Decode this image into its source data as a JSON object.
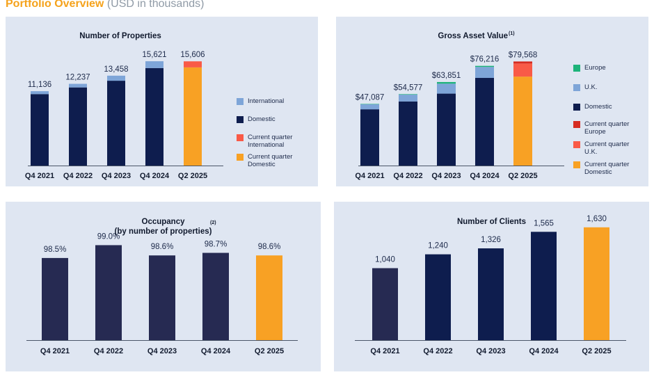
{
  "page": {
    "title_main": "Portfolio Overview",
    "title_sub": "(USD in thousands)"
  },
  "colors": {
    "panel_bg": "#dfe6f2",
    "domestic": "#0e1d4e",
    "occupancy_bar": "#262a52",
    "international": "#7ea5d8",
    "europe": "#1db37a",
    "current_domestic": "#f8a124",
    "current_international": "#f95a47",
    "current_uk": "#f95a47",
    "current_europe": "#d62c21",
    "axis": "#4a5568",
    "label": "#1d2a4a"
  },
  "chart_data": [
    {
      "id": "properties",
      "type": "bar",
      "stacked": true,
      "title": "Number of Properties",
      "footnote": "",
      "categories": [
        "Q4 2021",
        "Q4 2022",
        "Q4 2023",
        "Q4 2024",
        "Q2 2025"
      ],
      "totals": [
        "11,136",
        "12,237",
        "13,458",
        "15,621",
        "15,606"
      ],
      "series": [
        {
          "name": "Domestic",
          "values": [
            10700,
            11700,
            12700,
            14600,
            null
          ],
          "color": "#0e1d4e"
        },
        {
          "name": "International",
          "values": [
            436,
            537,
            758,
            1021,
            null
          ],
          "color": "#7ea5d8"
        },
        {
          "name": "Current quarter Domestic",
          "values": [
            null,
            null,
            null,
            null,
            14700
          ],
          "color": "#f8a124"
        },
        {
          "name": "Current quarter International",
          "values": [
            null,
            null,
            null,
            null,
            906
          ],
          "color": "#f95a47"
        }
      ],
      "ylim": [
        0,
        17500
      ],
      "legend": [
        {
          "label": "International",
          "color": "#7ea5d8"
        },
        {
          "label": "Domestic",
          "color": "#0e1d4e"
        },
        {
          "label": "Current quarter International",
          "color": "#f95a47"
        },
        {
          "label": "Current quarter Domestic",
          "color": "#f8a124"
        }
      ],
      "legend_position": "right"
    },
    {
      "id": "gav",
      "type": "bar",
      "stacked": true,
      "title": "Gross Asset Value",
      "footnote": "(1)",
      "categories": [
        "Q4 2021",
        "Q4 2022",
        "Q4 2023",
        "Q4 2024",
        "Q2 2025"
      ],
      "totals": [
        "$47,087",
        "$54,577",
        "$63,851",
        "$76,216",
        "$79,568"
      ],
      "series": [
        {
          "name": "Domestic",
          "values": [
            43000,
            49000,
            55000,
            67000,
            null
          ],
          "color": "#0e1d4e"
        },
        {
          "name": "U.K.",
          "values": [
            3800,
            5200,
            7600,
            8400,
            null
          ],
          "color": "#7ea5d8"
        },
        {
          "name": "Europe",
          "values": [
            287,
            377,
            1251,
            816,
            null
          ],
          "color": "#1db37a"
        },
        {
          "name": "Current quarter Domestic",
          "values": [
            null,
            null,
            null,
            null,
            68000
          ],
          "color": "#f8a124"
        },
        {
          "name": "Current quarter U.K.",
          "values": [
            null,
            null,
            null,
            null,
            10000
          ],
          "color": "#f95a47"
        },
        {
          "name": "Current quarter Europe",
          "values": [
            null,
            null,
            null,
            null,
            1568
          ],
          "color": "#d62c21"
        }
      ],
      "ylim": [
        0,
        92000
      ],
      "legend": [
        {
          "label": "Europe",
          "color": "#1db37a"
        },
        {
          "label": "U.K.",
          "color": "#7ea5d8"
        },
        {
          "label": "Domestic",
          "color": "#0e1d4e"
        },
        {
          "label": "Current quarter Europe",
          "color": "#d62c21"
        },
        {
          "label": "Current quarter U.K.",
          "color": "#f95a47"
        },
        {
          "label": "Current quarter Domestic",
          "color": "#f8a124"
        }
      ],
      "legend_position": "right"
    },
    {
      "id": "occupancy",
      "type": "bar",
      "title_lines": [
        "Occupancy",
        "(by number of properties)"
      ],
      "footnote": "(2)",
      "categories": [
        "Q4 2021",
        "Q4 2022",
        "Q4 2023",
        "Q4 2024",
        "Q2 2025"
      ],
      "values": [
        98.5,
        99.0,
        98.6,
        98.7,
        98.6
      ],
      "labels": [
        "98.5%",
        "99.0%",
        "98.6%",
        "98.7%",
        "98.6%"
      ],
      "colors": [
        "#262a52",
        "#262a52",
        "#262a52",
        "#262a52",
        "#f8a124"
      ],
      "ylim": [
        95.3,
        99.5
      ]
    },
    {
      "id": "clients",
      "type": "bar",
      "title": "Number of Clients",
      "footnote": "",
      "categories": [
        "Q4 2021",
        "Q4 2022",
        "Q4 2023",
        "Q4 2024",
        "Q2 2025"
      ],
      "values": [
        1040,
        1240,
        1326,
        1565,
        1630
      ],
      "labels": [
        "1,040",
        "1,240",
        "1,326",
        "1,565",
        "1,630"
      ],
      "colors": [
        "#262a52",
        "#0e1d4e",
        "#0e1d4e",
        "#0e1d4e",
        "#f8a124"
      ],
      "ylim": [
        0,
        2000
      ]
    }
  ]
}
